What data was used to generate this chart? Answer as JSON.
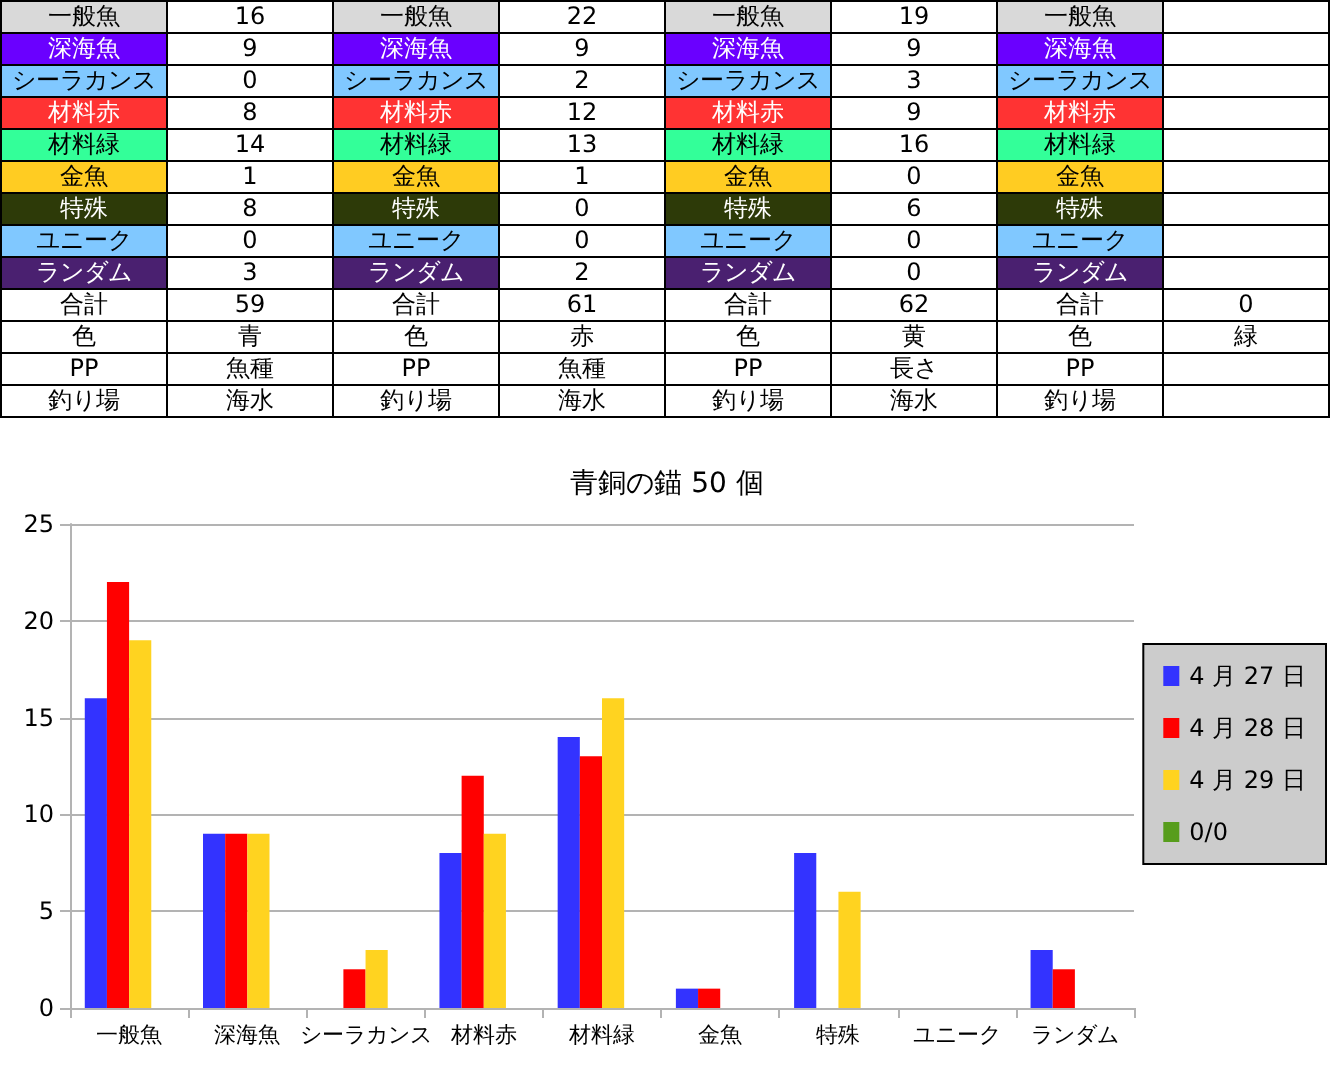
{
  "chart_data": [
    {
      "type": "other",
      "cell_labels": [
        [
          "一般魚",
          "16",
          "一般魚",
          "22",
          "一般魚",
          "19",
          "一般魚",
          null
        ],
        [
          "深海魚",
          "9",
          "深海魚",
          "9",
          "深海魚",
          "9",
          "深海魚",
          null
        ],
        [
          "シーラカンス",
          "0",
          "シーラカンス",
          "2",
          "シーラカンス",
          "3",
          "シーラカンス",
          null
        ],
        [
          "材料赤",
          "8",
          "材料赤",
          "12",
          "材料赤",
          "9",
          "材料赤",
          null
        ],
        [
          "材料緑",
          "14",
          "材料緑",
          "13",
          "材料緑",
          "16",
          "材料緑",
          null
        ],
        [
          "金魚",
          "1",
          "金魚",
          "1",
          "金魚",
          "0",
          "金魚",
          null
        ],
        [
          "特殊",
          "8",
          "特殊",
          "0",
          "特殊",
          "6",
          "特殊",
          null
        ],
        [
          "ユニーク",
          "0",
          "ユニーク",
          "0",
          "ユニーク",
          "0",
          "ユニーク",
          null
        ],
        [
          "ランダム",
          "3",
          "ランダム",
          "2",
          "ランダム",
          "0",
          "ランダム",
          null
        ],
        [
          "合計",
          "59",
          "合計",
          "61",
          "合計",
          "62",
          "合計",
          "0"
        ],
        [
          "色",
          "青",
          "色",
          "赤",
          "色",
          "黄",
          "色",
          "緑"
        ],
        [
          "PP",
          "魚種",
          "PP",
          "魚種",
          "PP",
          "長さ",
          "PP",
          null
        ],
        [
          "釣り場",
          "海水",
          "釣り場",
          "海水",
          "釣り場",
          "海水",
          "釣り場",
          null
        ]
      ],
      "colors": [
        "#d9d9d9",
        "#6a00ff",
        "#80c8ff",
        "#ff3333",
        "#33ff99",
        "#ffcc22",
        "#2d3a08",
        "#80c8ff",
        "#4a2070",
        null,
        null,
        null,
        null
      ]
    },
    {
      "type": "bar",
      "title": "青銅の錨 50 個",
      "categories": [
        "一般魚",
        "深海魚",
        "シーラカンス",
        "材料赤",
        "材料緑",
        "金魚",
        "特殊",
        "ユニーク",
        "ランダム"
      ],
      "series": [
        {
          "name": "4 月 27 日",
          "color": "#3333ff",
          "values": [
            16,
            9,
            0,
            8,
            14,
            1,
            8,
            0,
            3
          ]
        },
        {
          "name": "4 月 28 日",
          "color": "#ff0000",
          "values": [
            22,
            9,
            2,
            12,
            13,
            1,
            0,
            0,
            2
          ]
        },
        {
          "name": "4 月 29 日",
          "color": "#ffd320",
          "values": [
            19,
            9,
            3,
            9,
            16,
            0,
            6,
            0,
            0
          ]
        },
        {
          "name": "0/0",
          "color": "#579d1c",
          "values": [
            null,
            null,
            null,
            null,
            null,
            null,
            null,
            null,
            null
          ]
        }
      ],
      "ylim": [
        0,
        25
      ],
      "yticks": [
        0,
        5,
        10,
        15,
        20,
        25
      ],
      "grid": "y",
      "legend": "right"
    }
  ]
}
